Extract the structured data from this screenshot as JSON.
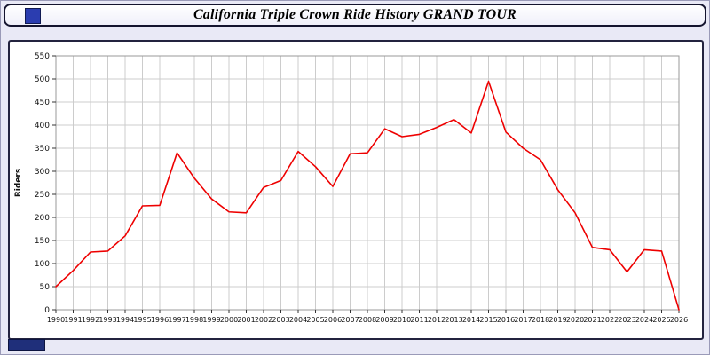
{
  "title": "California Triple Crown Ride History GRAND TOUR",
  "colors": {
    "line": "#ee0000",
    "grid": "#cccccc",
    "plot_border": "#999999",
    "page_bg": "#e9e9f6",
    "accent_blue": "#2b3db0"
  },
  "chart_data": {
    "type": "line",
    "title": "California Triple Crown Ride History GRAND TOUR",
    "xlabel": "",
    "ylabel": "Riders",
    "ylim": [
      0,
      550
    ],
    "ytick_step": 50,
    "grid": true,
    "legend_position": "none",
    "x": [
      1990,
      1991,
      1992,
      1993,
      1994,
      1995,
      1996,
      1997,
      1998,
      1999,
      2000,
      2001,
      2002,
      2003,
      2004,
      2005,
      2006,
      2007,
      2008,
      2009,
      2010,
      2011,
      2012,
      2013,
      2014,
      2015,
      2016,
      2017,
      2018,
      2019,
      2020,
      2021,
      2022,
      2023,
      2024,
      2025,
      2026
    ],
    "series": [
      {
        "name": "Riders",
        "values": [
          50,
          85,
          125,
          127,
          160,
          225,
          226,
          340,
          285,
          240,
          212,
          210,
          265,
          280,
          343,
          310,
          267,
          338,
          340,
          392,
          375,
          380,
          395,
          412,
          383,
          495,
          385,
          350,
          325,
          260,
          210,
          135,
          130,
          82,
          130,
          127,
          0
        ]
      }
    ]
  }
}
